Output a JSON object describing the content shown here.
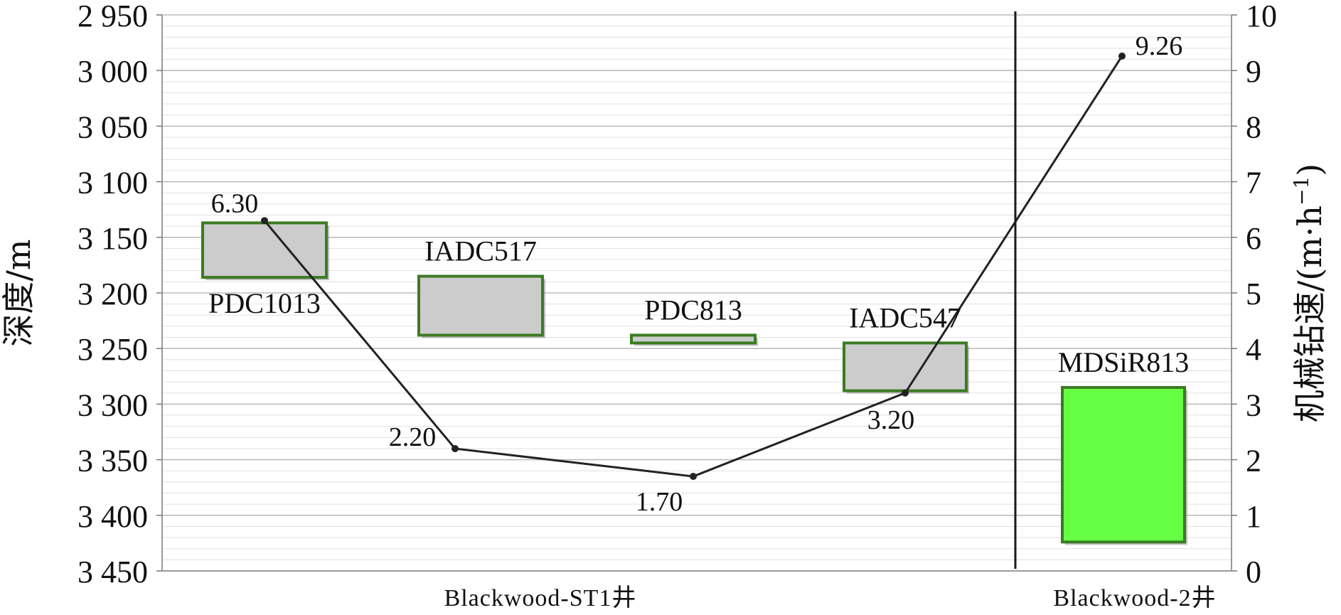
{
  "chart_data": {
    "type": "bar",
    "left_axis": {
      "title": "深度/m",
      "range": [
        2950,
        3450
      ],
      "inverted": true,
      "ticks": [
        {
          "value": 2950,
          "label": "2 950"
        },
        {
          "value": 3000,
          "label": "3 000"
        },
        {
          "value": 3050,
          "label": "3 050"
        },
        {
          "value": 3100,
          "label": "3 100"
        },
        {
          "value": 3150,
          "label": "3 150"
        },
        {
          "value": 3200,
          "label": "3 200"
        },
        {
          "value": 3250,
          "label": "3 250"
        },
        {
          "value": 3300,
          "label": "3 300"
        },
        {
          "value": 3350,
          "label": "3 350"
        },
        {
          "value": 3400,
          "label": "3 400"
        },
        {
          "value": 3450,
          "label": "3 450"
        }
      ]
    },
    "right_axis": {
      "title_main": "机械钻速/(m·h",
      "title_sup": "−1",
      "title_close": ")",
      "range": [
        0,
        10
      ],
      "ticks": [
        {
          "value": 0,
          "label": "0"
        },
        {
          "value": 1,
          "label": "1"
        },
        {
          "value": 2,
          "label": "2"
        },
        {
          "value": 3,
          "label": "3"
        },
        {
          "value": 4,
          "label": "4"
        },
        {
          "value": 5,
          "label": "5"
        },
        {
          "value": 6,
          "label": "6"
        },
        {
          "value": 7,
          "label": "7"
        },
        {
          "value": 8,
          "label": "8"
        },
        {
          "value": 9,
          "label": "9"
        },
        {
          "value": 10,
          "label": "10"
        }
      ]
    },
    "grid": true,
    "wells": [
      {
        "label": "Blackwood-ST1井",
        "range": [
          0,
          4
        ]
      },
      {
        "label": "Blackwood-2井",
        "range": [
          4,
          5
        ]
      }
    ],
    "intervals": [
      {
        "bit": "PDC1013",
        "top": 3137,
        "bottom": 3186,
        "color": "#cccccc",
        "label_pos": "below"
      },
      {
        "bit": "IADC517",
        "top": 3185,
        "bottom": 3238,
        "color": "#cccccc",
        "label_pos": "above"
      },
      {
        "bit": "PDC813",
        "top": 3238,
        "bottom": 3245,
        "color": "#cccccc",
        "label_pos": "above"
      },
      {
        "bit": "IADC547",
        "top": 3245,
        "bottom": 3288,
        "color": "#cccccc",
        "label_pos": "above"
      },
      {
        "bit": "MDSiR813",
        "top": 3285,
        "bottom": 3424,
        "color": "#66ff44",
        "label_pos": "above"
      }
    ],
    "rop_series": [
      {
        "x": 0.5,
        "y": 6.3,
        "label": "6.30"
      },
      {
        "x": 1.4,
        "y": 2.2,
        "label": "2.20"
      },
      {
        "x": 2.4,
        "y": 1.7,
        "label": "1.70"
      },
      {
        "x": 3.3,
        "y": 3.2,
        "label": "3.20"
      },
      {
        "x": 4.4,
        "y": 9.26,
        "label": "9.26"
      }
    ],
    "colors": {
      "bar_border": "#3c7a23",
      "gray_fill": "#cccccc",
      "green_fill": "#66ff44",
      "line": "#222222",
      "grid": "#c8c8c8"
    }
  }
}
